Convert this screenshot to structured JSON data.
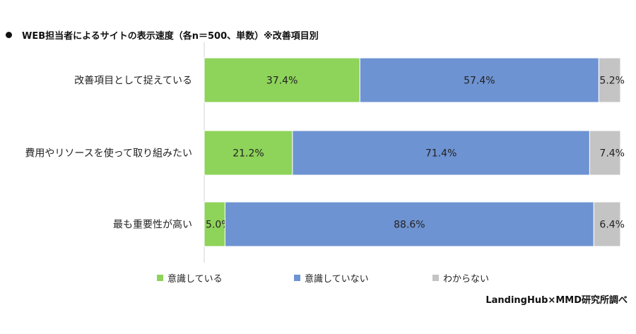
{
  "title": "WEB担当者によるサイトの表示速度（各n＝500、単数）※改善項目別",
  "source": "LandingHub×MMD研究所調べ",
  "colors": {
    "series0": "#8ED35A",
    "series1": "#6E93D2",
    "series2": "#C4C4C4",
    "axis": "#d0d0d0"
  },
  "chart_data": {
    "type": "bar",
    "orientation": "horizontal",
    "stacked": true,
    "title": "WEB担当者によるサイトの表示速度（各n＝500、単数）※改善項目別",
    "categories": [
      "改善項目として捉えている",
      "費用やリソースを使って取り組みたい",
      "最も重要性が高い"
    ],
    "series": [
      {
        "name": "意識している",
        "values": [
          37.4,
          21.2,
          5.0
        ],
        "labels": [
          "37.4%",
          "21.2%",
          "5.0%"
        ]
      },
      {
        "name": "意識していない",
        "values": [
          57.4,
          71.4,
          88.6
        ],
        "labels": [
          "57.4%",
          "71.4%",
          "88.6%"
        ]
      },
      {
        "name": "わからない",
        "values": [
          5.2,
          7.4,
          6.4
        ],
        "labels": [
          "5.2%",
          "7.4%",
          "6.4%"
        ]
      }
    ],
    "xlim": [
      0,
      100
    ],
    "grid": false,
    "legend": "bottom"
  }
}
